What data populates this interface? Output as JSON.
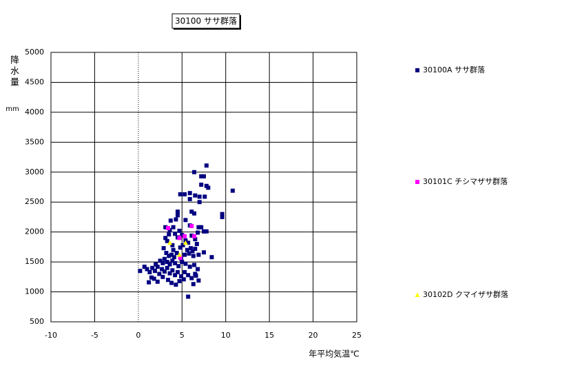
{
  "chart_data": {
    "type": "scatter",
    "title": "30100 ササ群落",
    "x_label": "年平均気温℃",
    "y_label": "降水量",
    "y_unit": "mm",
    "xlim": [
      -10,
      25
    ],
    "xticks": [
      -10,
      -5,
      0,
      5,
      10,
      15,
      20,
      25
    ],
    "ylim": [
      500,
      5000
    ],
    "yticks": [
      500,
      1000,
      1500,
      2000,
      2500,
      3000,
      3500,
      4000,
      4500,
      5000
    ],
    "grid": true,
    "legend": "right",
    "series": [
      {
        "name": "30100A ササ群落",
        "color": "#000080",
        "marker": "square",
        "x": [
          7.8,
          6.4,
          7.2,
          7.5,
          7.2,
          7.8,
          8.0,
          10.8,
          5.9,
          4.8,
          5.3,
          6.5,
          7.0,
          7.0,
          7.6,
          5.9,
          9.6,
          9.6,
          4.5,
          4.5,
          6.1,
          3.7,
          4.3,
          5.4,
          6.4,
          5.9,
          4.0,
          3.1,
          6.9,
          7.2,
          7.5,
          7.8,
          3.1,
          3.3,
          3.5,
          4.2,
          4.5,
          5.0,
          5.4,
          5.7,
          6.1,
          6.5,
          6.8,
          3.9,
          4.8,
          5.6,
          6.2,
          6.7,
          2.9,
          3.2,
          3.5,
          3.8,
          4.1,
          4.4,
          4.9,
          5.3,
          5.8,
          6.3,
          6.9,
          7.5,
          8.4,
          2.5,
          2.8,
          3.0,
          3.3,
          3.6,
          3.9,
          4.2,
          4.6,
          5.0,
          5.4,
          5.9,
          6.4,
          6.8,
          0.2,
          0.7,
          1.0,
          1.3,
          1.6,
          1.9,
          2.2,
          2.4,
          2.7,
          3.0,
          3.3,
          3.6,
          3.9,
          4.2,
          4.5,
          4.9,
          5.3,
          5.7,
          6.1,
          6.5,
          6.9,
          1.2,
          1.8,
          2.2,
          2.8,
          3.4,
          3.8,
          4.3,
          4.7,
          5.2,
          5.7,
          6.3,
          6.6,
          2.0,
          1.5,
          4.0,
          5.1,
          6.0,
          4.7,
          3.6,
          6.5
        ],
        "values": [
          3110,
          3000,
          2930,
          2930,
          2790,
          2770,
          2740,
          2690,
          2650,
          2630,
          2630,
          2610,
          2590,
          2500,
          2590,
          2550,
          2300,
          2250,
          2340,
          2280,
          2340,
          2190,
          2210,
          2200,
          2310,
          2110,
          2080,
          2080,
          2080,
          2080,
          2010,
          2010,
          1900,
          1850,
          1960,
          1970,
          1910,
          1950,
          1860,
          1820,
          1940,
          1880,
          1990,
          1780,
          1740,
          1700,
          1680,
          1800,
          1730,
          1650,
          1600,
          1620,
          1580,
          1650,
          1560,
          1620,
          1640,
          1600,
          1620,
          1660,
          1580,
          1520,
          1480,
          1550,
          1500,
          1460,
          1520,
          1480,
          1430,
          1500,
          1470,
          1420,
          1450,
          1380,
          1350,
          1420,
          1380,
          1330,
          1400,
          1350,
          1420,
          1300,
          1380,
          1340,
          1400,
          1310,
          1360,
          1280,
          1330,
          1260,
          1330,
          1280,
          1230,
          1300,
          1190,
          1160,
          1220,
          1170,
          1250,
          1200,
          1150,
          1120,
          1180,
          1210,
          920,
          1130,
          1270,
          1460,
          1240,
          1700,
          1780,
          1730,
          2020,
          2030,
          1720
        ]
      },
      {
        "name": "30101C チシマザサ群落",
        "color": "#ff00ff",
        "marker": "square",
        "x": [
          3.4,
          6.1,
          5.3,
          6.4,
          4.7,
          4.8
        ],
        "values": [
          2065,
          2100,
          1930,
          1930,
          1900,
          1570
        ]
      },
      {
        "name": "30102D クマイザサ群落",
        "color": "#ffff00",
        "marker": "triangle",
        "x": [
          3.6,
          5.4,
          4.7
        ],
        "values": [
          1820,
          1820,
          1620
        ]
      }
    ]
  }
}
